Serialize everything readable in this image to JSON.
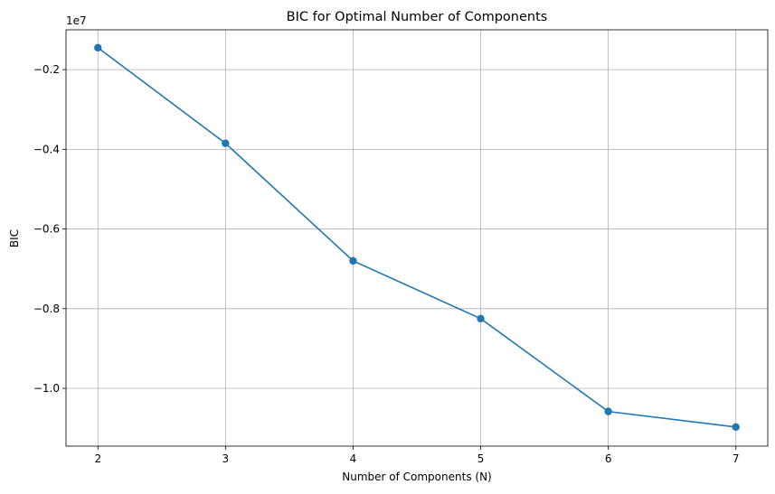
{
  "chart_data": {
    "type": "line",
    "title": "BIC for Optimal Number of Components",
    "xlabel": "Number of Components (N)",
    "ylabel": "BIC",
    "y_offset_label": "1e7",
    "x": [
      2,
      3,
      4,
      5,
      6,
      7
    ],
    "series": [
      {
        "values": [
          -0.145,
          -0.385,
          -0.68,
          -0.825,
          -1.058,
          -1.097
        ],
        "color": "#1f77b4",
        "marker": "circle"
      }
    ],
    "xticks": [
      2,
      3,
      4,
      5,
      6,
      7
    ],
    "yticks": [
      -0.2,
      -0.4,
      -0.6,
      -0.8,
      -1.0
    ],
    "ytick_labels": [
      "−0.2",
      "−0.4",
      "−0.6",
      "−0.8",
      "−1.0"
    ],
    "xlim": [
      1.75,
      7.25
    ],
    "ylim": [
      -1.145,
      -0.1
    ],
    "grid": true,
    "grid_color": "#b0b0b0"
  }
}
